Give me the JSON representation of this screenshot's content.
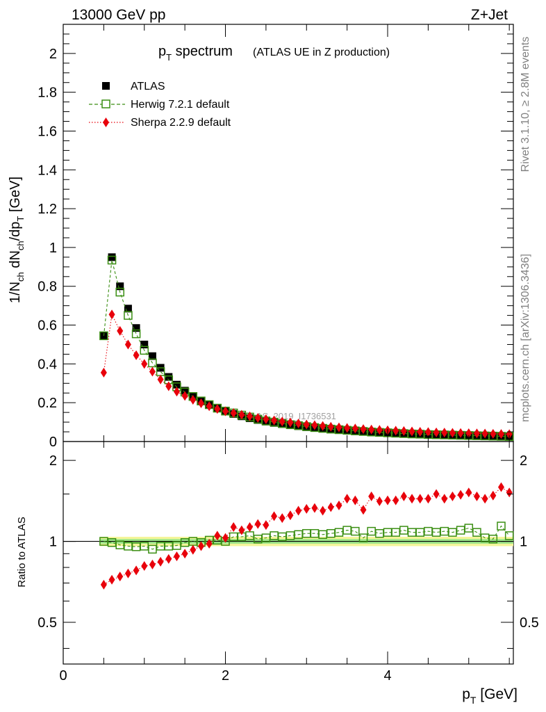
{
  "header": {
    "left": "13000 GeV pp",
    "right": "Z+Jet"
  },
  "side_labels": {
    "top": "Rivet 3.1.10, ≥ 2.8M events",
    "bottom": "mcplots.cern.ch [arXiv:1306.3436]"
  },
  "title": {
    "main": "p",
    "main_sub": "T",
    "main_rest": " spectrum",
    "note": "(ATLAS UE in Z production)"
  },
  "watermark": "ATLAS_2019_I1736531",
  "colors": {
    "atlas": "#000000",
    "herwig": "#3a8e12",
    "sherpa": "#e8000b",
    "band_outer": "#f4f59a",
    "band_inner": "#9ee68b"
  },
  "chart_data": [
    {
      "type": "scatter",
      "panel": "main",
      "ylabel": "1/N_ch dN_ch/dp_T [GeV]",
      "ylim": [
        0,
        2.15
      ],
      "xlim": [
        0,
        5.55
      ],
      "yticks": [
        "0",
        "0.2",
        "0.4",
        "0.6",
        "0.8",
        "1",
        "1.2",
        "1.4",
        "1.6",
        "1.8",
        "2"
      ],
      "x": [
        0.5,
        0.6,
        0.7,
        0.8,
        0.9,
        1.0,
        1.1,
        1.2,
        1.3,
        1.4,
        1.5,
        1.6,
        1.7,
        1.8,
        1.9,
        2.0,
        2.1,
        2.2,
        2.3,
        2.4,
        2.5,
        2.6,
        2.7,
        2.8,
        2.9,
        3.0,
        3.1,
        3.2,
        3.3,
        3.4,
        3.5,
        3.6,
        3.7,
        3.8,
        3.9,
        4.0,
        4.1,
        4.2,
        4.3,
        4.4,
        4.5,
        4.6,
        4.7,
        4.8,
        4.9,
        5.0,
        5.1,
        5.2,
        5.3,
        5.4,
        5.5
      ],
      "series": [
        {
          "name": "ATLAS",
          "marker": "filled-square",
          "values": [
            0.545,
            0.95,
            0.8,
            0.685,
            0.585,
            0.5,
            0.44,
            0.38,
            0.333,
            0.293,
            0.262,
            0.233,
            0.208,
            0.188,
            0.17,
            0.155,
            0.142,
            0.13,
            0.12,
            0.111,
            0.103,
            0.096,
            0.09,
            0.084,
            0.079,
            0.074,
            0.07,
            0.066,
            0.062,
            0.059,
            0.056,
            0.053,
            0.051,
            0.048,
            0.046,
            0.044,
            0.042,
            0.04,
            0.038,
            0.037,
            0.035,
            0.034,
            0.033,
            0.032,
            0.031,
            0.03,
            0.029,
            0.028,
            0.027,
            0.026,
            0.025
          ]
        },
        {
          "name": "Herwig 7.2.1 default",
          "marker": "open-square",
          "line": "dashed",
          "values": [
            0.545,
            0.935,
            0.77,
            0.65,
            0.555,
            0.47,
            0.405,
            0.36,
            0.318,
            0.282,
            0.255,
            0.232,
            0.209,
            0.19,
            0.172,
            0.157,
            0.147,
            0.136,
            0.126,
            0.115,
            0.106,
            0.1,
            0.093,
            0.087,
            0.082,
            0.077,
            0.072,
            0.068,
            0.064,
            0.061,
            0.058,
            0.055,
            0.052,
            0.049,
            0.047,
            0.045,
            0.043,
            0.041,
            0.039,
            0.038,
            0.036,
            0.035,
            0.034,
            0.033,
            0.032,
            0.031,
            0.03,
            0.029,
            0.028,
            0.027,
            0.026
          ]
        },
        {
          "name": "Sherpa 2.2.9 default",
          "marker": "filled-diamond",
          "line": "dotted",
          "values": [
            0.355,
            0.655,
            0.57,
            0.5,
            0.445,
            0.4,
            0.36,
            0.32,
            0.285,
            0.257,
            0.235,
            0.215,
            0.197,
            0.182,
            0.168,
            0.156,
            0.147,
            0.138,
            0.13,
            0.122,
            0.115,
            0.109,
            0.103,
            0.098,
            0.093,
            0.088,
            0.084,
            0.08,
            0.076,
            0.073,
            0.07,
            0.067,
            0.064,
            0.062,
            0.06,
            0.058,
            0.056,
            0.054,
            0.052,
            0.05,
            0.049,
            0.047,
            0.046,
            0.045,
            0.044,
            0.043,
            0.042,
            0.041,
            0.04,
            0.039,
            0.038
          ]
        }
      ]
    },
    {
      "type": "scatter",
      "panel": "ratio",
      "ylabel": "Ratio to ATLAS",
      "yscale": "log",
      "ylim": [
        0.35,
        2.35
      ],
      "yticks": [
        "0.5",
        "1",
        "2"
      ],
      "xlabel": "p_T [GeV]",
      "xticks": [
        "0",
        "2",
        "4"
      ],
      "x": [
        0.5,
        0.6,
        0.7,
        0.8,
        0.9,
        1.0,
        1.1,
        1.2,
        1.3,
        1.4,
        1.5,
        1.6,
        1.7,
        1.8,
        1.9,
        2.0,
        2.1,
        2.2,
        2.3,
        2.4,
        2.5,
        2.6,
        2.7,
        2.8,
        2.9,
        3.0,
        3.1,
        3.2,
        3.3,
        3.4,
        3.5,
        3.6,
        3.7,
        3.8,
        3.9,
        4.0,
        4.1,
        4.2,
        4.3,
        4.4,
        4.5,
        4.6,
        4.7,
        4.8,
        4.9,
        5.0,
        5.1,
        5.2,
        5.3,
        5.4,
        5.5
      ],
      "band": {
        "outer": 0.04,
        "inner": 0.02
      },
      "series": [
        {
          "name": "Herwig 7.2.1 default",
          "marker": "open-square",
          "line": "dashed",
          "values": [
            1.0,
            0.99,
            0.97,
            0.96,
            0.955,
            0.96,
            0.935,
            0.96,
            0.96,
            0.965,
            0.99,
            1.0,
            0.99,
            1.01,
            1.01,
            1.0,
            1.04,
            1.04,
            1.05,
            1.02,
            1.03,
            1.05,
            1.04,
            1.05,
            1.06,
            1.07,
            1.07,
            1.06,
            1.07,
            1.08,
            1.1,
            1.09,
            1.03,
            1.09,
            1.07,
            1.08,
            1.08,
            1.1,
            1.08,
            1.08,
            1.09,
            1.08,
            1.09,
            1.08,
            1.1,
            1.12,
            1.08,
            1.03,
            1.02,
            1.14,
            1.05
          ]
        },
        {
          "name": "Sherpa 2.2.9 default",
          "marker": "filled-diamond",
          "line": "dotted",
          "values": [
            0.69,
            0.72,
            0.74,
            0.76,
            0.78,
            0.81,
            0.82,
            0.84,
            0.86,
            0.88,
            0.9,
            0.93,
            0.96,
            0.98,
            1.05,
            1.03,
            1.13,
            1.1,
            1.13,
            1.16,
            1.15,
            1.24,
            1.22,
            1.25,
            1.3,
            1.32,
            1.33,
            1.3,
            1.34,
            1.36,
            1.44,
            1.42,
            1.31,
            1.47,
            1.41,
            1.42,
            1.42,
            1.47,
            1.44,
            1.44,
            1.44,
            1.5,
            1.44,
            1.47,
            1.49,
            1.52,
            1.47,
            1.44,
            1.48,
            1.59,
            1.52
          ]
        }
      ]
    }
  ]
}
